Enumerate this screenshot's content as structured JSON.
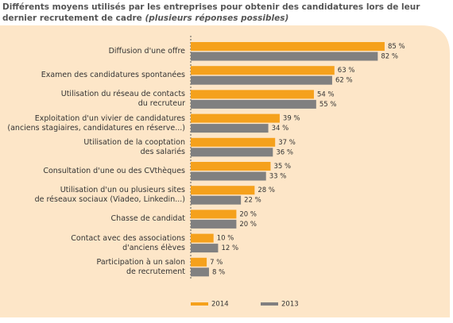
{
  "chart_data": {
    "type": "bar",
    "orientation": "horizontal",
    "title": "Différents moyens utilisés par les entreprises pour obtenir des candidatures lors de leur dernier recrutement de cadre",
    "subtitle": "(plusieurs réponses possibles)",
    "categories": [
      "Diffusion d'une offre",
      "Examen des candidatures spontanées",
      "Utilisation du réseau de contacts\ndu recruteur",
      "Exploitation d'un vivier de candidatures\n(anciens stagiaires, candidatures en réserve...)",
      "Utilisation de la cooptation\ndes salariés",
      "Consultation d'une ou des CVthèques",
      "Utilisation d'un ou plusieurs sites\nde réseaux sociaux (Viadeo, Linkedin...)",
      "Chasse de candidat",
      "Contact avec des associations\nd'anciens élèves",
      "Participation à un salon\nde recrutement"
    ],
    "series": [
      {
        "name": "2014",
        "color": "#f5a11c",
        "values": [
          85,
          63,
          54,
          39,
          37,
          35,
          28,
          20,
          10,
          7
        ],
        "value_labels": [
          "85 %",
          "63 %",
          "54 %",
          "39 %",
          "37 %",
          "35 %",
          "28 %",
          "20 %",
          "10 %",
          "7 %"
        ]
      },
      {
        "name": "2013",
        "color": "#808080",
        "values": [
          82,
          62,
          55,
          34,
          36,
          33,
          22,
          20,
          12,
          8
        ],
        "value_labels": [
          "82 %",
          "62 %",
          "55 %",
          "34 %",
          "36 %",
          "33 %",
          "22 %",
          "20 %",
          "12 %",
          "8 %"
        ]
      }
    ],
    "xlim": [
      0,
      100
    ],
    "legend": "bottom"
  }
}
